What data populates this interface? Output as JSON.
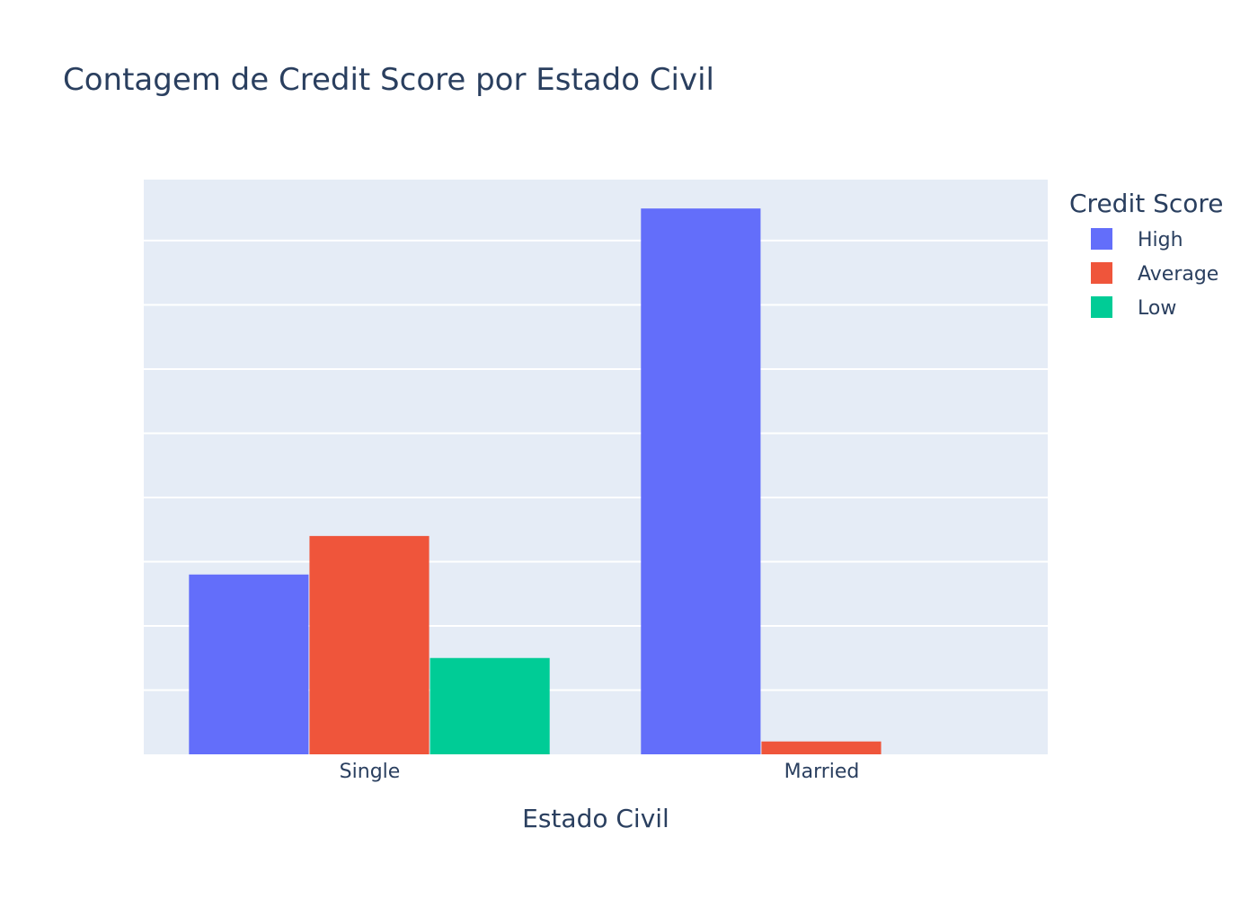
{
  "chart_data": {
    "type": "bar",
    "title": "Contagem de Credit Score por Estado Civil",
    "xlabel": "Estado Civil",
    "ylabel": "",
    "categories": [
      "Single",
      "Married"
    ],
    "series": [
      {
        "name": "High",
        "color": "#636efa",
        "values": [
          28,
          85
        ]
      },
      {
        "name": "Average",
        "color": "#ef553b",
        "values": [
          34,
          2
        ]
      },
      {
        "name": "Low",
        "color": "#00cc96",
        "values": [
          15,
          0
        ]
      }
    ],
    "ylim": [
      0,
      89.5
    ],
    "ytick_step": 10,
    "grid": true,
    "legend": {
      "title": "Credit Score",
      "position": "top-right"
    },
    "plot_bg": "#e5ecf6"
  }
}
